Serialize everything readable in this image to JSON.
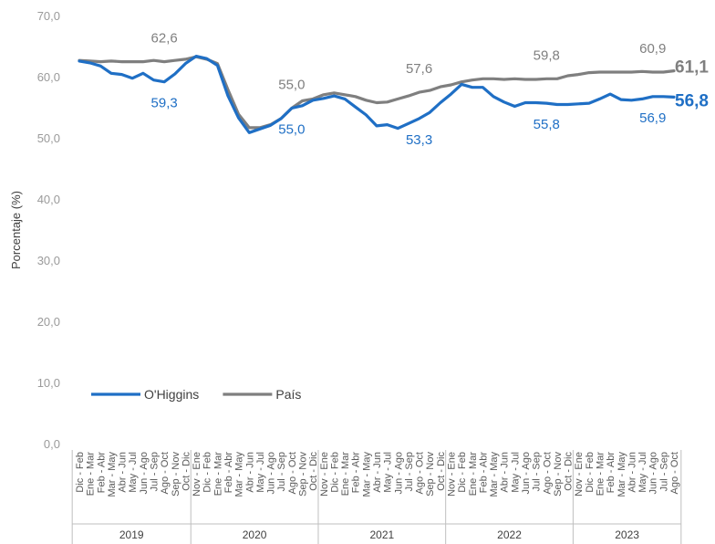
{
  "chart_data": {
    "type": "line",
    "title": "",
    "xlabel": "",
    "ylabel": "Porcentaje (%)",
    "ylim": [
      0,
      70
    ],
    "y_ticks": [
      "0,0",
      "10,0",
      "20,0",
      "30,0",
      "40,0",
      "50,0",
      "60,0",
      "70,0"
    ],
    "grid": false,
    "legend": "bottom-left, inside plot",
    "categories": [
      "Dic - Feb",
      "Ene - Mar",
      "Feb - Abr",
      "Mar - May",
      "Abr - Jun",
      "May - Jul",
      "Jun - Ago",
      "Jul - Sep",
      "Ago - Oct",
      "Sep - Nov",
      "Oct - Dic",
      "Nov - Ene",
      "Dic - Feb",
      "Ene - Mar",
      "Feb - Abr",
      "Mar - May",
      "Abr - Jun",
      "May - Jul",
      "Jun - Ago",
      "Jul - Sep",
      "Ago - Oct",
      "Sep - Nov",
      "Oct - Dic",
      "Nov - Ene",
      "Dic - Feb",
      "Ene - Mar",
      "Feb - Abr",
      "Mar - May",
      "Abr - Jun",
      "May - Jul",
      "Jun - Ago",
      "Jul - Sep",
      "Ago - Oct",
      "Sep - Nov",
      "Oct - Dic",
      "Nov - Ene",
      "Dic - Feb",
      "Ene - Mar",
      "Feb - Abr",
      "Mar - May",
      "Abr - Jun",
      "May - Jul",
      "Jun - Ago",
      "Jul - Sep",
      "Ago - Oct",
      "Sep - Nov",
      "Oct - Dic",
      "Nov - Ene",
      "Dic - Feb",
      "Ene - Mar",
      "Feb - Abr",
      "Mar - May",
      "Abr - Jun",
      "May - Jul",
      "Jun - Ago",
      "Jul - Sep",
      "Ago - Oct"
    ],
    "years": [
      {
        "label": "2019",
        "start": 0,
        "end": 10
      },
      {
        "label": "2020",
        "start": 11,
        "end": 22
      },
      {
        "label": "2021",
        "start": 23,
        "end": 34
      },
      {
        "label": "2022",
        "start": 35,
        "end": 46
      },
      {
        "label": "2023",
        "start": 47,
        "end": 56
      }
    ],
    "series": [
      {
        "name": "O'Higgins",
        "color": "#1F6FC5",
        "values": [
          62.7,
          62.4,
          61.9,
          60.7,
          60.5,
          59.9,
          60.7,
          59.6,
          59.3,
          60.6,
          62.3,
          63.5,
          63.1,
          62.0,
          57.0,
          53.4,
          51.0,
          51.6,
          52.2,
          53.3,
          55.0,
          55.4,
          56.3,
          56.6,
          57.0,
          56.5,
          55.2,
          53.9,
          52.1,
          52.3,
          51.7,
          52.5,
          53.3,
          54.3,
          55.9,
          57.3,
          58.9,
          58.4,
          58.4,
          56.9,
          56.0,
          55.3,
          55.9,
          55.9,
          55.8,
          55.6,
          55.6,
          55.7,
          55.8,
          56.5,
          57.3,
          56.4,
          56.3,
          56.5,
          56.9,
          56.9,
          56.8
        ]
      },
      {
        "name": "País",
        "color": "#7F7F7F",
        "values": [
          62.8,
          62.7,
          62.6,
          62.7,
          62.6,
          62.6,
          62.6,
          62.8,
          62.6,
          62.8,
          63.0,
          63.4,
          63.0,
          62.3,
          58.0,
          54.0,
          51.8,
          51.8,
          52.3,
          53.3,
          55.0,
          56.2,
          56.5,
          57.2,
          57.5,
          57.2,
          56.9,
          56.3,
          55.9,
          56.0,
          56.5,
          57.0,
          57.6,
          57.9,
          58.5,
          58.8,
          59.3,
          59.6,
          59.8,
          59.8,
          59.7,
          59.8,
          59.7,
          59.7,
          59.8,
          59.8,
          60.3,
          60.5,
          60.8,
          60.9,
          60.9,
          60.9,
          60.9,
          61.0,
          60.9,
          60.9,
          61.1
        ]
      }
    ],
    "annotations": [
      {
        "series": "País",
        "index": 8,
        "text": "62,6",
        "position": "above"
      },
      {
        "series": "O'Higgins",
        "index": 8,
        "text": "59,3",
        "position": "below"
      },
      {
        "series": "País",
        "index": 20,
        "text": "55,0",
        "position": "above"
      },
      {
        "series": "O'Higgins",
        "index": 20,
        "text": "55,0",
        "position": "below"
      },
      {
        "series": "País",
        "index": 32,
        "text": "57,6",
        "position": "above"
      },
      {
        "series": "O'Higgins",
        "index": 32,
        "text": "53,3",
        "position": "below"
      },
      {
        "series": "País",
        "index": 44,
        "text": "59,8",
        "position": "above"
      },
      {
        "series": "O'Higgins",
        "index": 44,
        "text": "55,8",
        "position": "below"
      },
      {
        "series": "País",
        "index": 54,
        "text": "60,9",
        "position": "above"
      },
      {
        "series": "O'Higgins",
        "index": 54,
        "text": "56,9",
        "position": "below"
      },
      {
        "series": "País",
        "index": 56,
        "text": "61,1",
        "position": "end",
        "bold": true
      },
      {
        "series": "O'Higgins",
        "index": 56,
        "text": "56,8",
        "position": "end",
        "bold": true
      }
    ]
  }
}
